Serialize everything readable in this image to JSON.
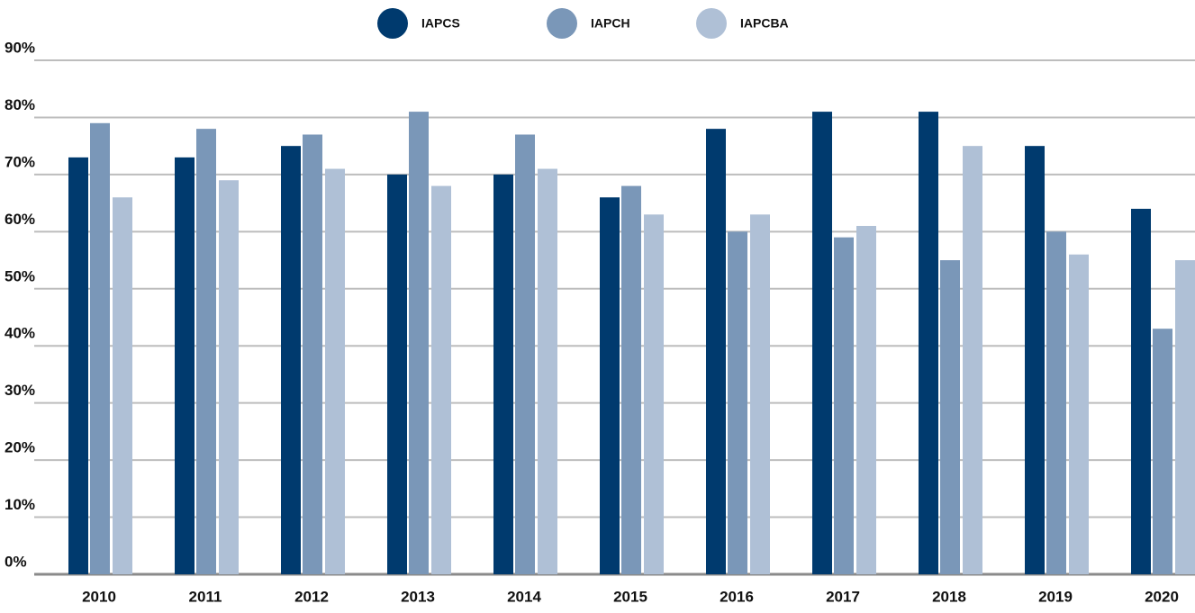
{
  "chart_data": {
    "type": "bar",
    "categories": [
      "2010",
      "2011",
      "2012",
      "2013",
      "2014",
      "2015",
      "2016",
      "2017",
      "2018",
      "2019",
      "2020"
    ],
    "series": [
      {
        "name": "IAPCS",
        "color": "#003a6e",
        "values": [
          73,
          73,
          75,
          70,
          70,
          66,
          78,
          81,
          81,
          75,
          64
        ]
      },
      {
        "name": "IAPCH",
        "color": "#7a97b8",
        "values": [
          79,
          78,
          77,
          81,
          77,
          68,
          60,
          59,
          55,
          60,
          43
        ]
      },
      {
        "name": "IAPCBA",
        "color": "#afc0d6",
        "values": [
          66,
          69,
          71,
          68,
          71,
          63,
          63,
          61,
          75,
          56,
          55
        ]
      }
    ],
    "ylim": [
      0,
      90
    ],
    "yticks": [
      {
        "value": 0,
        "label": "0%"
      },
      {
        "value": 10,
        "label": "10%"
      },
      {
        "value": 20,
        "label": "20%"
      },
      {
        "value": 30,
        "label": "30%"
      },
      {
        "value": 40,
        "label": "40%"
      },
      {
        "value": 50,
        "label": "50%"
      },
      {
        "value": 60,
        "label": "60%"
      },
      {
        "value": 70,
        "label": "70%"
      },
      {
        "value": 80,
        "label": "80%"
      },
      {
        "value": 90,
        "label": "90%"
      }
    ],
    "grid": true,
    "legend": "top"
  }
}
